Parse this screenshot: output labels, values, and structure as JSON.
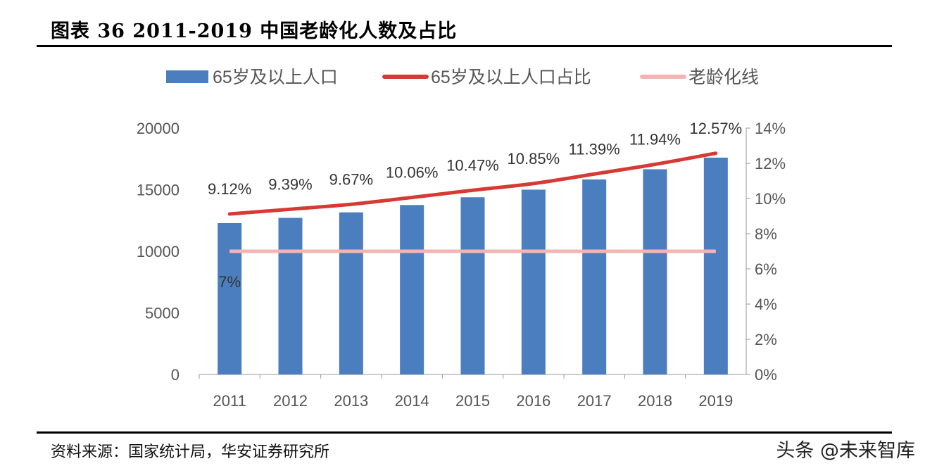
{
  "title": "图表 36 2011-2019 中国老龄化人数及占比",
  "source": "资料来源：国家统计局，华安证券研究所",
  "watermark": "头条 @未来智库",
  "chart_data": {
    "type": "bar+line",
    "categories": [
      "2011",
      "2012",
      "2013",
      "2014",
      "2015",
      "2016",
      "2017",
      "2018",
      "2019"
    ],
    "series": [
      {
        "name": "65岁及以上人口",
        "type": "bar",
        "axis": "left",
        "color": "#4a7ebf",
        "values": [
          12288,
          12714,
          13161,
          13755,
          14386,
          15003,
          15831,
          16658,
          17603
        ]
      },
      {
        "name": "65岁及以上人口占比",
        "type": "line",
        "axis": "right",
        "color": "#d63a35",
        "values": [
          9.12,
          9.39,
          9.67,
          10.06,
          10.47,
          10.85,
          11.39,
          11.94,
          12.57
        ],
        "labels": [
          "9.12%",
          "9.39%",
          "9.67%",
          "10.06%",
          "10.47%",
          "10.85%",
          "11.39%",
          "11.94%",
          "12.57%"
        ]
      },
      {
        "name": "老龄化线",
        "type": "line",
        "axis": "right",
        "color": "#f2b5b3",
        "values": [
          7,
          7,
          7,
          7,
          7,
          7,
          7,
          7,
          7
        ],
        "labels": [
          "7%"
        ]
      }
    ],
    "left_axis": {
      "ylim": [
        0,
        20000
      ],
      "ticks": [
        "0",
        "5000",
        "10000",
        "15000",
        "20000"
      ]
    },
    "right_axis": {
      "ylim": [
        0,
        14
      ],
      "ticks": [
        "0%",
        "2%",
        "4%",
        "6%",
        "8%",
        "10%",
        "12%",
        "14%"
      ]
    },
    "legend_position": "top",
    "grid": false
  }
}
